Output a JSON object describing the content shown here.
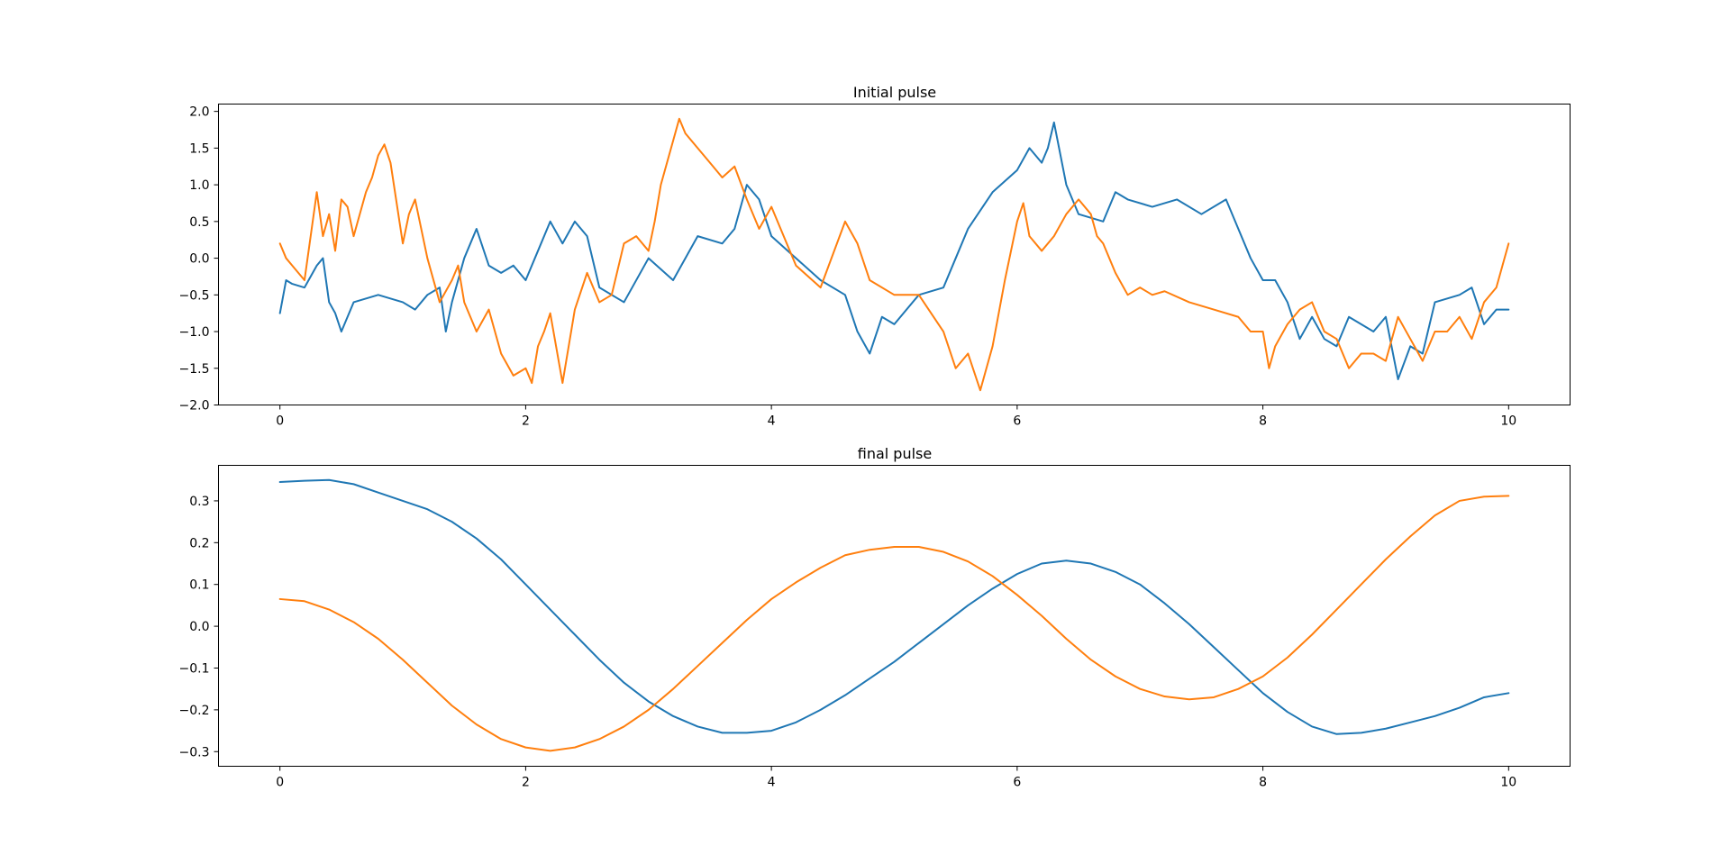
{
  "chart_data": [
    {
      "type": "line",
      "title": "Initial pulse",
      "xlabel": "",
      "ylabel": "",
      "xlim": [
        -0.5,
        10.5
      ],
      "ylim": [
        -2.0,
        2.1
      ],
      "xticks": [
        0,
        2,
        4,
        6,
        8,
        10
      ],
      "xtick_labels": [
        "0",
        "2",
        "4",
        "6",
        "8",
        "10"
      ],
      "yticks": [
        -2.0,
        -1.5,
        -1.0,
        -0.5,
        0.0,
        0.5,
        1.0,
        1.5,
        2.0
      ],
      "ytick_labels": [
        "−2.0",
        "−1.5",
        "−1.0",
        "−0.5",
        "0.0",
        "0.5",
        "1.0",
        "1.5",
        "2.0"
      ],
      "grid": false,
      "legend": "none",
      "series": [
        {
          "color": "#1f77b4",
          "x": [
            0.0,
            0.05,
            0.1,
            0.2,
            0.3,
            0.35,
            0.4,
            0.45,
            0.5,
            0.6,
            0.8,
            1.0,
            1.1,
            1.2,
            1.3,
            1.35,
            1.4,
            1.5,
            1.6,
            1.7,
            1.8,
            1.9,
            2.0,
            2.1,
            2.2,
            2.3,
            2.4,
            2.5,
            2.6,
            2.8,
            3.0,
            3.2,
            3.4,
            3.6,
            3.7,
            3.8,
            3.9,
            4.0,
            4.2,
            4.4,
            4.6,
            4.7,
            4.8,
            4.9,
            5.0,
            5.2,
            5.4,
            5.5,
            5.6,
            5.8,
            6.0,
            6.1,
            6.2,
            6.25,
            6.3,
            6.4,
            6.5,
            6.7,
            6.8,
            6.9,
            7.1,
            7.3,
            7.5,
            7.7,
            7.8,
            7.9,
            8.0,
            8.1,
            8.2,
            8.3,
            8.4,
            8.5,
            8.6,
            8.7,
            8.9,
            9.0,
            9.1,
            9.2,
            9.3,
            9.4,
            9.6,
            9.7,
            9.8,
            9.9,
            10.0
          ],
          "y": [
            -0.75,
            -0.3,
            -0.35,
            -0.4,
            -0.1,
            0.0,
            -0.6,
            -0.75,
            -1.0,
            -0.6,
            -0.5,
            -0.6,
            -0.7,
            -0.5,
            -0.4,
            -1.0,
            -0.6,
            0.0,
            0.4,
            -0.1,
            -0.2,
            -0.1,
            -0.3,
            0.1,
            0.5,
            0.2,
            0.5,
            0.3,
            -0.4,
            -0.6,
            0.0,
            -0.3,
            0.3,
            0.2,
            0.4,
            1.0,
            0.8,
            0.3,
            0.0,
            -0.3,
            -0.5,
            -1.0,
            -1.3,
            -0.8,
            -0.9,
            -0.5,
            -0.4,
            0.0,
            0.4,
            0.9,
            1.2,
            1.5,
            1.3,
            1.5,
            1.85,
            1.0,
            0.6,
            0.5,
            0.9,
            0.8,
            0.7,
            0.8,
            0.6,
            0.8,
            0.4,
            0.0,
            -0.3,
            -0.3,
            -0.6,
            -1.1,
            -0.8,
            -1.1,
            -1.2,
            -0.8,
            -1.0,
            -0.8,
            -1.65,
            -1.2,
            -1.3,
            -0.6,
            -0.5,
            -0.4,
            -0.9,
            -0.7,
            -0.7
          ]
        },
        {
          "color": "#ff7f0e",
          "x": [
            0.0,
            0.05,
            0.1,
            0.2,
            0.3,
            0.35,
            0.4,
            0.45,
            0.5,
            0.55,
            0.6,
            0.7,
            0.75,
            0.8,
            0.85,
            0.9,
            1.0,
            1.05,
            1.1,
            1.2,
            1.3,
            1.4,
            1.45,
            1.5,
            1.6,
            1.7,
            1.8,
            1.9,
            2.0,
            2.05,
            2.1,
            2.15,
            2.2,
            2.3,
            2.4,
            2.5,
            2.6,
            2.7,
            2.8,
            2.9,
            3.0,
            3.05,
            3.1,
            3.2,
            3.25,
            3.3,
            3.4,
            3.5,
            3.6,
            3.7,
            3.8,
            3.9,
            4.0,
            4.2,
            4.4,
            4.6,
            4.7,
            4.8,
            5.0,
            5.2,
            5.4,
            5.5,
            5.6,
            5.7,
            5.75,
            5.8,
            5.9,
            5.95,
            6.0,
            6.05,
            6.1,
            6.2,
            6.3,
            6.4,
            6.5,
            6.6,
            6.65,
            6.7,
            6.8,
            6.9,
            7.0,
            7.1,
            7.2,
            7.4,
            7.6,
            7.8,
            7.9,
            8.0,
            8.05,
            8.1,
            8.2,
            8.3,
            8.4,
            8.5,
            8.6,
            8.7,
            8.8,
            8.9,
            9.0,
            9.1,
            9.2,
            9.3,
            9.4,
            9.5,
            9.6,
            9.7,
            9.8,
            9.9,
            10.0
          ],
          "y": [
            0.2,
            0.0,
            -0.1,
            -0.3,
            0.9,
            0.3,
            0.6,
            0.1,
            0.8,
            0.7,
            0.3,
            0.9,
            1.1,
            1.4,
            1.55,
            1.3,
            0.2,
            0.6,
            0.8,
            0.0,
            -0.6,
            -0.3,
            -0.1,
            -0.6,
            -1.0,
            -0.7,
            -1.3,
            -1.6,
            -1.5,
            -1.7,
            -1.2,
            -1.0,
            -0.75,
            -1.7,
            -0.7,
            -0.2,
            -0.6,
            -0.5,
            0.2,
            0.3,
            0.1,
            0.5,
            1.0,
            1.6,
            1.9,
            1.7,
            1.5,
            1.3,
            1.1,
            1.25,
            0.8,
            0.4,
            0.7,
            -0.1,
            -0.4,
            0.5,
            0.2,
            -0.3,
            -0.5,
            -0.5,
            -1.0,
            -1.5,
            -1.3,
            -1.8,
            -1.5,
            -1.2,
            -0.3,
            0.1,
            0.5,
            0.75,
            0.3,
            0.1,
            0.3,
            0.6,
            0.8,
            0.6,
            0.3,
            0.2,
            -0.2,
            -0.5,
            -0.4,
            -0.5,
            -0.45,
            -0.6,
            -0.7,
            -0.8,
            -1.0,
            -1.0,
            -1.5,
            -1.2,
            -0.9,
            -0.7,
            -0.6,
            -1.0,
            -1.1,
            -1.5,
            -1.3,
            -1.3,
            -1.4,
            -0.8,
            -1.1,
            -1.4,
            -1.0,
            -1.0,
            -0.8,
            -1.1,
            -0.6,
            -0.4,
            0.2
          ]
        }
      ]
    },
    {
      "type": "line",
      "title": "final pulse",
      "xlabel": "",
      "ylabel": "",
      "xlim": [
        -0.5,
        10.5
      ],
      "ylim": [
        -0.335,
        0.385
      ],
      "xticks": [
        0,
        2,
        4,
        6,
        8,
        10
      ],
      "xtick_labels": [
        "0",
        "2",
        "4",
        "6",
        "8",
        "10"
      ],
      "yticks": [
        -0.3,
        -0.2,
        -0.1,
        0.0,
        0.1,
        0.2,
        0.3
      ],
      "ytick_labels": [
        "−0.3",
        "−0.2",
        "−0.1",
        "0.0",
        "0.1",
        "0.2",
        "0.3"
      ],
      "grid": false,
      "legend": "none",
      "series": [
        {
          "color": "#1f77b4",
          "x": [
            0.0,
            0.2,
            0.4,
            0.6,
            0.8,
            1.0,
            1.2,
            1.4,
            1.6,
            1.8,
            2.0,
            2.2,
            2.4,
            2.6,
            2.8,
            3.0,
            3.2,
            3.4,
            3.6,
            3.8,
            4.0,
            4.2,
            4.4,
            4.6,
            4.8,
            5.0,
            5.2,
            5.4,
            5.6,
            5.8,
            6.0,
            6.2,
            6.4,
            6.6,
            6.8,
            7.0,
            7.2,
            7.4,
            7.6,
            7.8,
            8.0,
            8.2,
            8.4,
            8.6,
            8.8,
            9.0,
            9.2,
            9.4,
            9.6,
            9.8,
            10.0
          ],
          "y": [
            0.345,
            0.348,
            0.35,
            0.34,
            0.32,
            0.3,
            0.28,
            0.25,
            0.21,
            0.16,
            0.1,
            0.04,
            -0.02,
            -0.08,
            -0.135,
            -0.18,
            -0.215,
            -0.24,
            -0.255,
            -0.255,
            -0.25,
            -0.23,
            -0.2,
            -0.165,
            -0.125,
            -0.085,
            -0.04,
            0.005,
            0.05,
            0.09,
            0.125,
            0.15,
            0.157,
            0.15,
            0.13,
            0.1,
            0.055,
            0.005,
            -0.05,
            -0.105,
            -0.16,
            -0.205,
            -0.24,
            -0.258,
            -0.255,
            -0.245,
            -0.23,
            -0.215,
            -0.195,
            -0.17,
            -0.16
          ]
        },
        {
          "color": "#ff7f0e",
          "x": [
            0.0,
            0.2,
            0.4,
            0.6,
            0.8,
            1.0,
            1.2,
            1.4,
            1.6,
            1.8,
            2.0,
            2.2,
            2.4,
            2.6,
            2.8,
            3.0,
            3.2,
            3.4,
            3.6,
            3.8,
            4.0,
            4.2,
            4.4,
            4.6,
            4.8,
            5.0,
            5.2,
            5.4,
            5.6,
            5.8,
            6.0,
            6.2,
            6.4,
            6.6,
            6.8,
            7.0,
            7.2,
            7.4,
            7.6,
            7.8,
            8.0,
            8.2,
            8.4,
            8.6,
            8.8,
            9.0,
            9.2,
            9.4,
            9.6,
            9.8,
            10.0
          ],
          "y": [
            0.065,
            0.06,
            0.04,
            0.01,
            -0.03,
            -0.08,
            -0.135,
            -0.19,
            -0.235,
            -0.27,
            -0.29,
            -0.298,
            -0.29,
            -0.27,
            -0.24,
            -0.2,
            -0.15,
            -0.095,
            -0.04,
            0.015,
            0.065,
            0.105,
            0.14,
            0.17,
            0.183,
            0.19,
            0.19,
            0.178,
            0.155,
            0.12,
            0.075,
            0.025,
            -0.03,
            -0.08,
            -0.12,
            -0.15,
            -0.168,
            -0.175,
            -0.17,
            -0.15,
            -0.12,
            -0.075,
            -0.02,
            0.04,
            0.1,
            0.16,
            0.215,
            0.265,
            0.3,
            0.31,
            0.312
          ]
        }
      ]
    }
  ]
}
